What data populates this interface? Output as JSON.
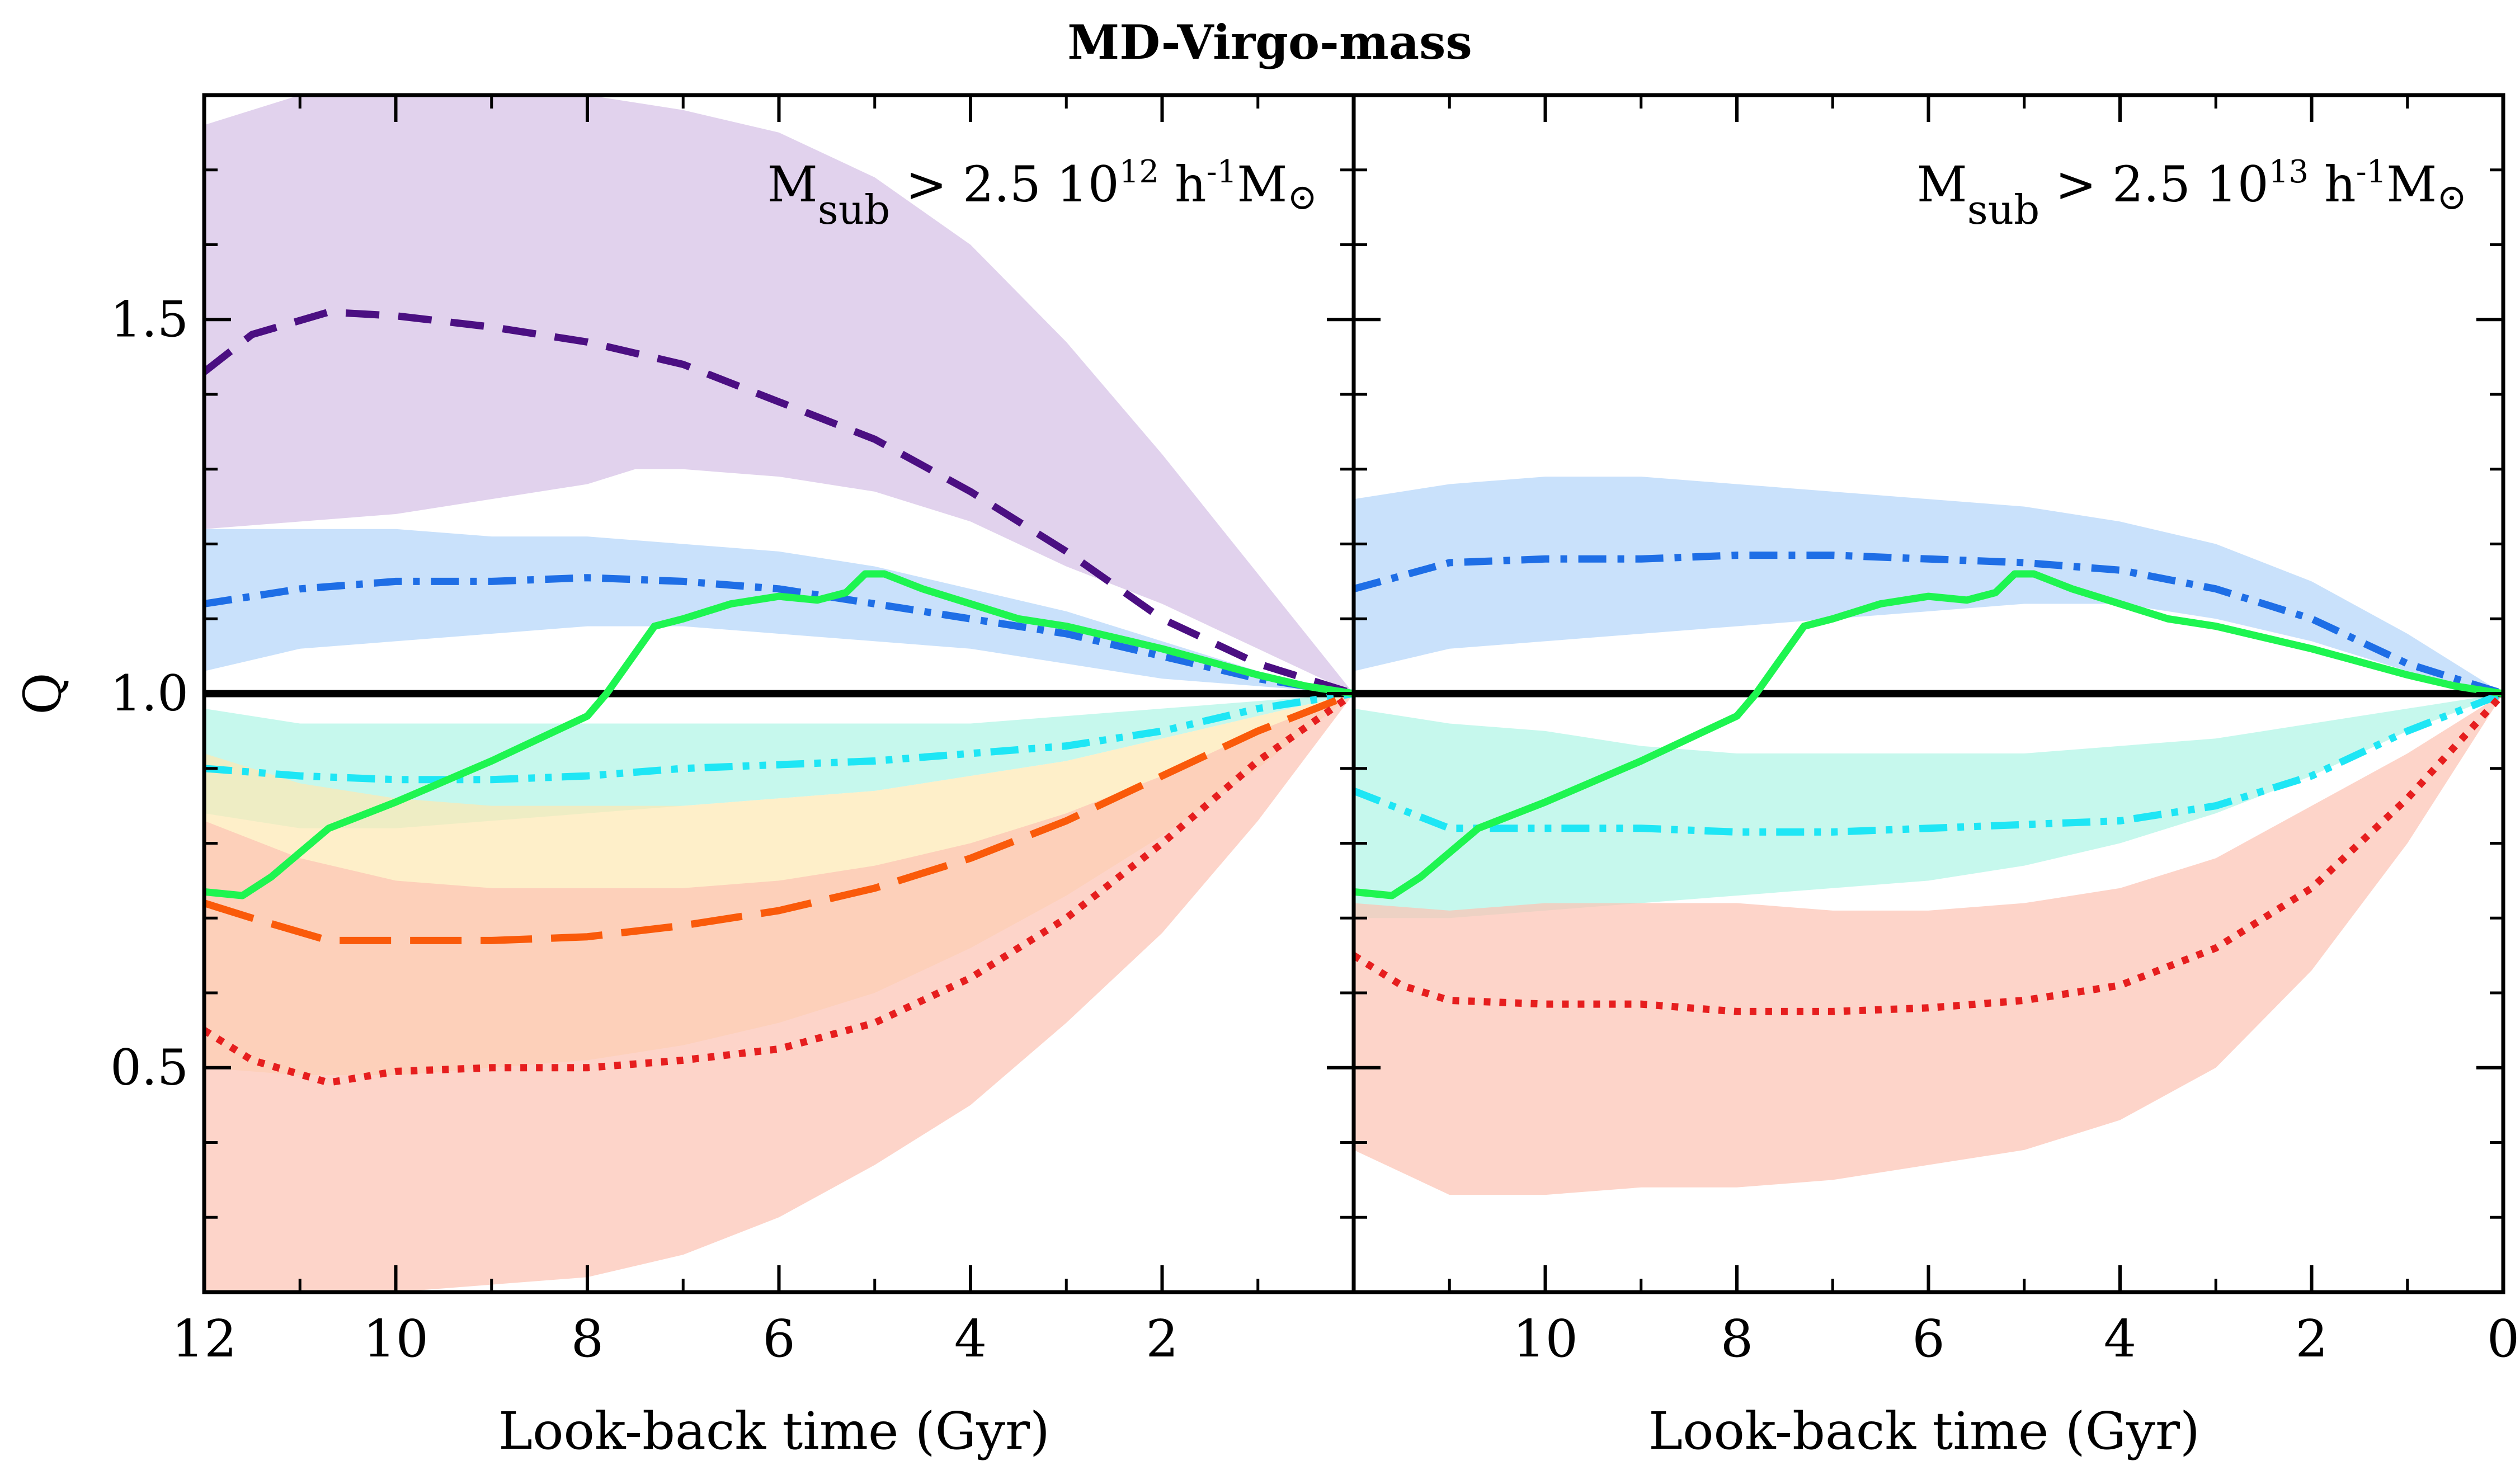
{
  "chart_data": {
    "type": "line",
    "title": "MD-Virgo-mass",
    "ylabel": "Q",
    "xlabel": "Look-back time (Gyr)",
    "ylim": [
      0.2,
      1.8
    ],
    "yticks": [
      0.5,
      1.0,
      1.5
    ],
    "ytick_labels": [
      "0.5",
      "1.0",
      "1.5"
    ],
    "reference_line": 1.0,
    "colors": {
      "purple_band": "#d5c1e6",
      "purple_line": "#4b0f82",
      "blue_band": "#b4d5fa",
      "blue_line": "#1e6ee6",
      "cyan_band": "#b0f5e6",
      "cyan_line": "#1ee6f5",
      "yellow_band": "#fde9b4",
      "orange_line": "#fa5a0a",
      "red_band": "#fcc3b4",
      "red_line": "#e61e1e",
      "green_line": "#1ef550"
    },
    "panels": [
      {
        "label_text": "M",
        "label_sub": "sub",
        "label_mid": " > 2.5 10",
        "label_exp": "12",
        "label_unit_pre": " h",
        "label_unit_exp": "-1",
        "label_unit_post": "M",
        "label_sun": "⊙",
        "xlim": [
          12,
          0
        ],
        "xticks": [
          12,
          10,
          8,
          6,
          4,
          2
        ],
        "xtick_labels": [
          "12",
          "10",
          "8",
          "6",
          "4",
          "2"
        ],
        "bands": [
          {
            "name": "purple",
            "color": "#d5c1e6",
            "x": [
              12,
              11,
              10,
              9,
              8,
              7.5,
              7,
              6,
              5,
              4,
              3,
              2,
              1,
              0
            ],
            "low": [
              1.22,
              1.23,
              1.24,
              1.26,
              1.28,
              1.3,
              1.3,
              1.29,
              1.27,
              1.23,
              1.17,
              1.12,
              1.06,
              1.0
            ],
            "high": [
              1.76,
              1.8,
              1.8,
              1.8,
              1.8,
              1.79,
              1.78,
              1.75,
              1.69,
              1.6,
              1.47,
              1.32,
              1.16,
              1.0
            ]
          },
          {
            "name": "blue",
            "color": "#b4d5fa",
            "x": [
              12,
              11,
              10,
              9,
              8,
              7,
              6,
              5,
              4,
              3,
              2,
              1,
              0
            ],
            "low": [
              1.03,
              1.06,
              1.07,
              1.08,
              1.09,
              1.09,
              1.08,
              1.07,
              1.06,
              1.04,
              1.02,
              1.01,
              1.0
            ],
            "high": [
              1.22,
              1.22,
              1.22,
              1.21,
              1.21,
              1.2,
              1.19,
              1.17,
              1.14,
              1.11,
              1.07,
              1.03,
              1.0
            ]
          },
          {
            "name": "cyan",
            "color": "#b0f5e6",
            "x": [
              12,
              11,
              10,
              9,
              8,
              7,
              6,
              5,
              4,
              3,
              2,
              1,
              0
            ],
            "low": [
              0.84,
              0.82,
              0.82,
              0.83,
              0.84,
              0.85,
              0.86,
              0.87,
              0.89,
              0.91,
              0.94,
              0.97,
              1.0
            ],
            "high": [
              0.98,
              0.96,
              0.96,
              0.96,
              0.96,
              0.96,
              0.96,
              0.96,
              0.96,
              0.97,
              0.98,
              0.99,
              1.0
            ]
          },
          {
            "name": "yellow",
            "color": "#fde9b4",
            "x": [
              12,
              11,
              10,
              9,
              8,
              7,
              6,
              5,
              4,
              3,
              2,
              1,
              0
            ],
            "low": [
              0.5,
              0.49,
              0.49,
              0.5,
              0.51,
              0.53,
              0.56,
              0.6,
              0.66,
              0.73,
              0.81,
              0.9,
              1.0
            ],
            "high": [
              0.92,
              0.88,
              0.86,
              0.85,
              0.85,
              0.85,
              0.86,
              0.87,
              0.89,
              0.91,
              0.94,
              0.97,
              1.0
            ]
          },
          {
            "name": "red",
            "color": "#fcc3b4",
            "x": [
              12,
              11,
              10,
              9,
              8,
              7,
              6,
              5,
              4,
              3,
              2,
              1,
              0
            ],
            "low": [
              0.2,
              0.2,
              0.2,
              0.21,
              0.22,
              0.25,
              0.3,
              0.37,
              0.45,
              0.56,
              0.68,
              0.83,
              1.0
            ],
            "high": [
              0.83,
              0.78,
              0.75,
              0.74,
              0.74,
              0.74,
              0.75,
              0.77,
              0.8,
              0.84,
              0.89,
              0.95,
              1.0
            ]
          }
        ],
        "series": [
          {
            "name": "purple-dashed",
            "color": "#4b0f82",
            "style": "dashed",
            "x": [
              12,
              11.5,
              10.7,
              10,
              9,
              8,
              7,
              6,
              5,
              4,
              3,
              2,
              1,
              0
            ],
            "y": [
              1.43,
              1.48,
              1.51,
              1.505,
              1.49,
              1.47,
              1.44,
              1.39,
              1.34,
              1.27,
              1.19,
              1.1,
              1.04,
              1.0
            ]
          },
          {
            "name": "blue-dashdot",
            "color": "#1e6ee6",
            "style": "dashdot",
            "x": [
              12,
              11,
              10,
              9,
              8,
              7,
              6,
              5,
              4,
              3,
              2,
              1,
              0
            ],
            "y": [
              1.12,
              1.14,
              1.15,
              1.15,
              1.155,
              1.15,
              1.14,
              1.12,
              1.1,
              1.08,
              1.05,
              1.02,
              1.0
            ]
          },
          {
            "name": "cyan-dashdotdot",
            "color": "#1ee6f5",
            "style": "dashdotdot",
            "x": [
              12,
              11,
              10,
              9,
              8,
              7,
              6,
              5,
              4,
              3,
              2,
              1,
              0
            ],
            "y": [
              0.9,
              0.89,
              0.885,
              0.885,
              0.89,
              0.9,
              0.905,
              0.91,
              0.92,
              0.93,
              0.95,
              0.98,
              1.0
            ]
          },
          {
            "name": "orange-longdash",
            "color": "#fa5a0a",
            "style": "longdash",
            "x": [
              12,
              11.5,
              10.7,
              10,
              9,
              8,
              7,
              6,
              5,
              4,
              3,
              2,
              1,
              0
            ],
            "y": [
              0.72,
              0.7,
              0.67,
              0.67,
              0.67,
              0.675,
              0.69,
              0.71,
              0.74,
              0.78,
              0.83,
              0.89,
              0.95,
              1.0
            ]
          },
          {
            "name": "red-dotted",
            "color": "#e61e1e",
            "style": "dotted",
            "x": [
              12,
              11.5,
              10.7,
              10,
              9,
              8,
              7,
              6,
              5,
              4,
              3,
              2,
              1,
              0
            ],
            "y": [
              0.55,
              0.51,
              0.48,
              0.495,
              0.5,
              0.5,
              0.51,
              0.525,
              0.56,
              0.62,
              0.7,
              0.8,
              0.91,
              1.0
            ]
          },
          {
            "name": "green-solid",
            "color": "#1ef550",
            "style": "solid",
            "x": [
              12,
              11.6,
              11.3,
              10.7,
              10,
              9,
              8,
              7.8,
              7.3,
              7,
              6.5,
              6,
              5.6,
              5.3,
              5.1,
              4.9,
              4.5,
              4,
              3.5,
              3,
              2,
              1,
              0.5,
              0
            ],
            "y": [
              0.735,
              0.73,
              0.755,
              0.82,
              0.855,
              0.91,
              0.97,
              1.0,
              1.09,
              1.1,
              1.12,
              1.13,
              1.125,
              1.135,
              1.16,
              1.16,
              1.14,
              1.12,
              1.1,
              1.09,
              1.06,
              1.025,
              1.01,
              1.0
            ]
          }
        ]
      },
      {
        "label_text": "M",
        "label_sub": "sub",
        "label_mid": " > 2.5 10",
        "label_exp": "13",
        "label_unit_pre": " h",
        "label_unit_exp": "-1",
        "label_unit_post": "M",
        "label_sun": "⊙",
        "xlim": [
          12,
          0
        ],
        "xticks": [
          10,
          8,
          6,
          4,
          2,
          0
        ],
        "xtick_labels": [
          "10",
          "8",
          "6",
          "4",
          "2",
          "0"
        ],
        "bands": [
          {
            "name": "blue",
            "color": "#b4d5fa",
            "x": [
              12,
              11,
              10,
              9,
              8,
              7,
              6,
              5,
              4,
              3,
              2,
              1,
              0
            ],
            "low": [
              1.03,
              1.06,
              1.07,
              1.08,
              1.09,
              1.1,
              1.11,
              1.12,
              1.12,
              1.1,
              1.07,
              1.03,
              1.0
            ],
            "high": [
              1.26,
              1.28,
              1.29,
              1.29,
              1.28,
              1.27,
              1.26,
              1.25,
              1.23,
              1.2,
              1.15,
              1.08,
              1.0
            ]
          },
          {
            "name": "cyan",
            "color": "#b0f5e6",
            "x": [
              12,
              11,
              10,
              9,
              8,
              7,
              6,
              5,
              4,
              3,
              2,
              1,
              0
            ],
            "low": [
              0.7,
              0.7,
              0.71,
              0.72,
              0.73,
              0.74,
              0.75,
              0.77,
              0.8,
              0.84,
              0.89,
              0.95,
              1.0
            ],
            "high": [
              0.98,
              0.96,
              0.95,
              0.93,
              0.92,
              0.92,
              0.92,
              0.92,
              0.93,
              0.94,
              0.96,
              0.98,
              1.0
            ]
          },
          {
            "name": "red",
            "color": "#fcc3b4",
            "x": [
              12,
              11,
              10,
              9,
              8,
              7,
              6,
              5,
              4,
              3,
              2,
              1,
              0
            ],
            "low": [
              0.39,
              0.33,
              0.33,
              0.34,
              0.34,
              0.35,
              0.37,
              0.39,
              0.43,
              0.5,
              0.63,
              0.8,
              1.0
            ],
            "high": [
              0.72,
              0.71,
              0.72,
              0.72,
              0.72,
              0.71,
              0.71,
              0.72,
              0.74,
              0.78,
              0.85,
              0.92,
              1.0
            ]
          }
        ],
        "series": [
          {
            "name": "blue-dashdot",
            "color": "#1e6ee6",
            "style": "dashdot",
            "x": [
              12,
              11,
              10,
              9,
              8,
              7,
              6,
              5,
              4,
              3,
              2,
              1,
              0
            ],
            "y": [
              1.14,
              1.175,
              1.18,
              1.18,
              1.185,
              1.185,
              1.18,
              1.175,
              1.165,
              1.14,
              1.1,
              1.04,
              1.0
            ]
          },
          {
            "name": "cyan-dashdotdot",
            "color": "#1ee6f5",
            "style": "dashdotdot",
            "x": [
              12,
              11,
              10,
              9,
              8,
              7,
              6,
              5,
              4,
              3,
              2,
              1,
              0
            ],
            "y": [
              0.87,
              0.82,
              0.82,
              0.82,
              0.815,
              0.815,
              0.82,
              0.825,
              0.83,
              0.85,
              0.89,
              0.95,
              1.0
            ]
          },
          {
            "name": "red-dotted",
            "color": "#e61e1e",
            "style": "dotted",
            "x": [
              12,
              11.5,
              11,
              10,
              9,
              8,
              7,
              6,
              5,
              4,
              3,
              2,
              1,
              0
            ],
            "y": [
              0.65,
              0.61,
              0.59,
              0.585,
              0.585,
              0.575,
              0.575,
              0.58,
              0.59,
              0.61,
              0.66,
              0.74,
              0.86,
              1.0
            ]
          },
          {
            "name": "green-solid",
            "color": "#1ef550",
            "style": "solid",
            "x": [
              12,
              11.6,
              11.3,
              10.7,
              10,
              9,
              8,
              7.8,
              7.3,
              7,
              6.5,
              6,
              5.6,
              5.3,
              5.1,
              4.9,
              4.5,
              4,
              3.5,
              3,
              2,
              1,
              0.5,
              0
            ],
            "y": [
              0.735,
              0.73,
              0.755,
              0.82,
              0.855,
              0.91,
              0.97,
              1.0,
              1.09,
              1.1,
              1.12,
              1.13,
              1.125,
              1.135,
              1.16,
              1.16,
              1.14,
              1.12,
              1.1,
              1.09,
              1.06,
              1.025,
              1.01,
              1.0
            ]
          }
        ]
      }
    ]
  }
}
